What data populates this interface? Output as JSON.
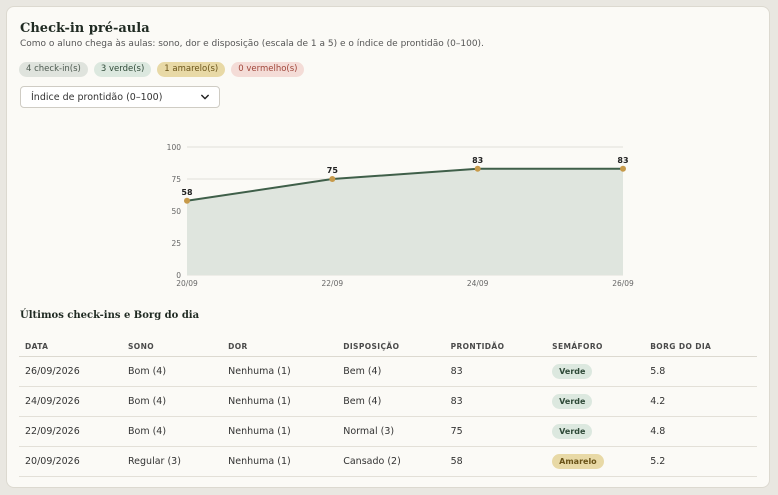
{
  "header": {
    "title": "Check-in pré-aula",
    "subtitle": "Como o aluno chega às aulas: sono, dor e disposição (escala de 1 a 5) e o índice de prontidão (0–100)."
  },
  "badges": {
    "total": "4 check-in(s)",
    "green": "3 verde(s)",
    "yellow": "1 amarelo(s)",
    "red": "0 vermelho(s)"
  },
  "metric_select": {
    "value": "Índice de prontidão (0–100)"
  },
  "chart_data": {
    "type": "area",
    "categories": [
      "20/09",
      "22/09",
      "24/09",
      "26/09"
    ],
    "values": [
      58,
      75,
      83,
      83
    ],
    "yticks": [
      0,
      25,
      50,
      75,
      100
    ],
    "ylim": [
      0,
      100
    ],
    "grid": true,
    "line_color": "#3f5f49",
    "fill_color": "#dfe5de",
    "marker_color": "#c79a4a"
  },
  "table": {
    "title": "Últimos check-ins e Borg do dia",
    "columns": [
      "DATA",
      "SONO",
      "DOR",
      "DISPOSIÇÃO",
      "PRONTIDÃO",
      "SEMÁFORO",
      "BORG DO DIA"
    ],
    "rows": [
      [
        "26/09/2026",
        "Bom (4)",
        "Nenhuma (1)",
        "Bem (4)",
        "83",
        "Verde",
        "5.8"
      ],
      [
        "24/09/2026",
        "Bom (4)",
        "Nenhuma (1)",
        "Bem (4)",
        "83",
        "Verde",
        "4.2"
      ],
      [
        "22/09/2026",
        "Bom (4)",
        "Nenhuma (1)",
        "Normal (3)",
        "75",
        "Verde",
        "4.8"
      ],
      [
        "20/09/2026",
        "Regular (3)",
        "Nenhuma (1)",
        "Cansado (2)",
        "58",
        "Amarelo",
        "5.2"
      ]
    ],
    "status_colors": {
      "Verde": "#dce8df",
      "Amarelo": "#e8d9a6"
    }
  }
}
